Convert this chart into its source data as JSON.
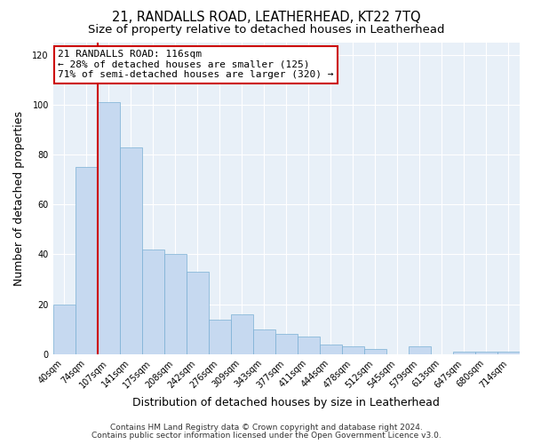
{
  "title": "21, RANDALLS ROAD, LEATHERHEAD, KT22 7TQ",
  "subtitle": "Size of property relative to detached houses in Leatherhead",
  "xlabel": "Distribution of detached houses by size in Leatherhead",
  "ylabel": "Number of detached properties",
  "bar_labels": [
    "40sqm",
    "74sqm",
    "107sqm",
    "141sqm",
    "175sqm",
    "208sqm",
    "242sqm",
    "276sqm",
    "309sqm",
    "343sqm",
    "377sqm",
    "411sqm",
    "444sqm",
    "478sqm",
    "512sqm",
    "545sqm",
    "579sqm",
    "613sqm",
    "647sqm",
    "680sqm",
    "714sqm"
  ],
  "bar_values": [
    20,
    75,
    101,
    83,
    42,
    40,
    33,
    14,
    16,
    10,
    8,
    7,
    4,
    3,
    2,
    0,
    3,
    0,
    1,
    1,
    1
  ],
  "bar_color": "#c6d9f0",
  "bar_edge_color": "#7aafd4",
  "highlight_line_index": 2,
  "highlight_line_color": "#cc0000",
  "annotation_line1": "21 RANDALLS ROAD: 116sqm",
  "annotation_line2": "← 28% of detached houses are smaller (125)",
  "annotation_line3": "71% of semi-detached houses are larger (320) →",
  "annotation_box_color": "#ffffff",
  "annotation_box_edge": "#cc0000",
  "ylim": [
    0,
    125
  ],
  "yticks": [
    0,
    20,
    40,
    60,
    80,
    100,
    120
  ],
  "plot_bg_color": "#e8f0f8",
  "background_color": "#ffffff",
  "grid_color": "#ffffff",
  "title_fontsize": 10.5,
  "subtitle_fontsize": 9.5,
  "axis_label_fontsize": 9,
  "tick_fontsize": 7,
  "annotation_fontsize": 8,
  "footer_fontsize": 6.5,
  "footer_line1": "Contains HM Land Registry data © Crown copyright and database right 2024.",
  "footer_line2": "Contains public sector information licensed under the Open Government Licence v3.0."
}
